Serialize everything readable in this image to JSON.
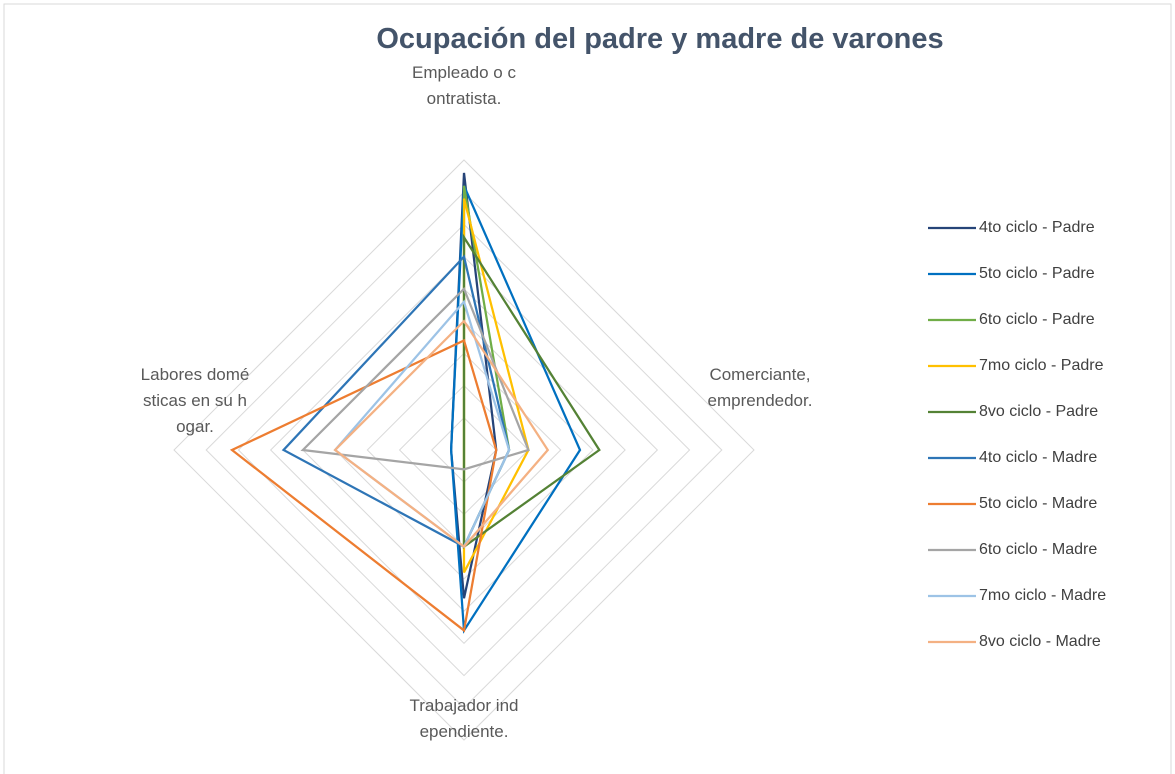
{
  "chart_data": {
    "type": "radar",
    "title": "Ocupación del padre y madre de varones",
    "categories": [
      "Empleado o contratista.",
      "Comerciante, emprendedor.",
      "Trabajador independiente.",
      "Labores domésticas en su hogar."
    ],
    "ylim": [
      0,
      45
    ],
    "yticks": [
      0,
      5,
      10,
      15,
      20,
      25,
      30,
      35,
      40,
      45
    ],
    "grid": true,
    "series": [
      {
        "name": "4to ciclo - Padre",
        "color": "#264478",
        "values": [
          43,
          5,
          23,
          2
        ]
      },
      {
        "name": "5to ciclo - Padre",
        "color": "#0070c0",
        "values": [
          41,
          18,
          28,
          2
        ]
      },
      {
        "name": "6to ciclo - Padre",
        "color": "#70ad47",
        "values": [
          41,
          7,
          15,
          0
        ]
      },
      {
        "name": "7mo ciclo - Padre",
        "color": "#ffc000",
        "values": [
          39,
          10,
          19,
          0
        ]
      },
      {
        "name": "8vo ciclo - Padre",
        "color": "#548235",
        "values": [
          33,
          21,
          15,
          0
        ]
      },
      {
        "name": "4to ciclo - Madre",
        "color": "#2e75b6",
        "values": [
          30,
          7,
          15,
          28
        ]
      },
      {
        "name": "5to ciclo - Madre",
        "color": "#ed7d31",
        "values": [
          17,
          5,
          28,
          36
        ]
      },
      {
        "name": "6to ciclo - Madre",
        "color": "#a5a5a5",
        "values": [
          25,
          10,
          3,
          25
        ]
      },
      {
        "name": "7mo ciclo - Madre",
        "color": "#9dc3e6",
        "values": [
          23,
          7,
          15,
          20
        ]
      },
      {
        "name": "8vo ciclo - Madre",
        "color": "#f4b183",
        "values": [
          20,
          13,
          15,
          20
        ]
      }
    ]
  }
}
